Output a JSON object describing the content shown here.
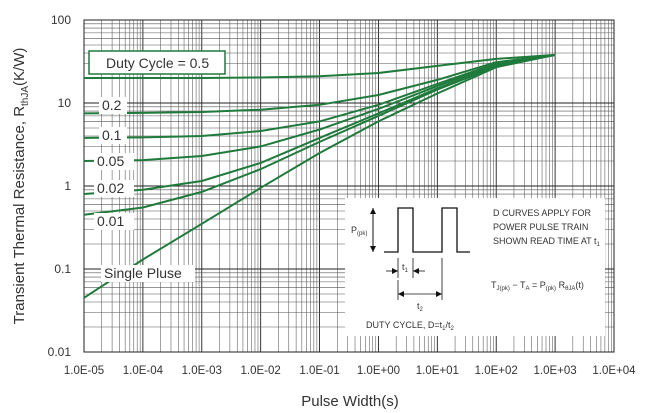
{
  "chart_data": {
    "type": "line",
    "xscale": "log",
    "yscale": "log",
    "xlim": [
      1e-05,
      10000
    ],
    "ylim": [
      0.01,
      100
    ],
    "xlabel": "Pulse Width(s)",
    "ylabel_main": "Transient Thermal Resistance, R",
    "ylabel_sub": "thJA",
    "ylabel_unit": "(K/W)",
    "x_ticks": [
      {
        "value": 1e-05,
        "label": "1.0E-05"
      },
      {
        "value": 0.0001,
        "label": "1.0E-04"
      },
      {
        "value": 0.001,
        "label": "1.0E-03"
      },
      {
        "value": 0.01,
        "label": "1.0E-02"
      },
      {
        "value": 0.1,
        "label": "1.0E-01"
      },
      {
        "value": 1,
        "label": "1.0E+00"
      },
      {
        "value": 10,
        "label": "1.0E+01"
      },
      {
        "value": 100,
        "label": "1.0E+02"
      },
      {
        "value": 1000,
        "label": "1.0E+03"
      },
      {
        "value": 10000,
        "label": "1.0E+04"
      }
    ],
    "y_ticks": [
      {
        "value": 0.01,
        "label": "0.01"
      },
      {
        "value": 0.1,
        "label": "0.1"
      },
      {
        "value": 1,
        "label": "1"
      },
      {
        "value": 10,
        "label": "10"
      },
      {
        "value": 100,
        "label": "100"
      }
    ],
    "grid": true,
    "line_color": "#1f7a3c",
    "series": [
      {
        "name": "Duty Cycle = 0.5",
        "x": [
          1e-05,
          0.0001,
          0.001,
          0.01,
          0.1,
          1,
          10,
          100,
          1000
        ],
        "y": [
          20,
          20,
          20,
          20.3,
          21,
          23,
          28,
          34,
          38
        ]
      },
      {
        "name": "0.2",
        "x": [
          1e-05,
          0.0001,
          0.001,
          0.01,
          0.1,
          1,
          10,
          100,
          1000
        ],
        "y": [
          7.5,
          7.6,
          7.8,
          8.3,
          9.5,
          12.5,
          19,
          31,
          38
        ]
      },
      {
        "name": "0.1",
        "x": [
          1e-05,
          0.0001,
          0.001,
          0.01,
          0.1,
          1,
          10,
          100,
          1000
        ],
        "y": [
          3.8,
          3.85,
          4,
          4.6,
          6,
          9.5,
          17,
          30,
          38
        ]
      },
      {
        "name": "0.05",
        "x": [
          1e-05,
          0.0001,
          0.001,
          0.01,
          0.1,
          1,
          10,
          100,
          1000
        ],
        "y": [
          2,
          2.05,
          2.3,
          3,
          4.8,
          8.5,
          16,
          29,
          38
        ]
      },
      {
        "name": "0.02",
        "x": [
          1e-05,
          0.0001,
          0.001,
          0.01,
          0.1,
          1,
          10,
          100,
          1000
        ],
        "y": [
          0.8,
          0.9,
          1.15,
          1.9,
          3.8,
          7.5,
          15,
          28,
          38
        ]
      },
      {
        "name": "0.01",
        "x": [
          1e-05,
          0.0001,
          0.001,
          0.01,
          0.1,
          1,
          10,
          100,
          1000
        ],
        "y": [
          0.45,
          0.55,
          0.85,
          1.6,
          3.4,
          7,
          14.5,
          27.5,
          38
        ]
      },
      {
        "name": "Single Pluse",
        "x": [
          1e-05,
          0.0001,
          0.001,
          0.01,
          0.1,
          1,
          10,
          100,
          1000
        ],
        "y": [
          0.045,
          0.13,
          0.35,
          0.95,
          2.5,
          6,
          13,
          27,
          38
        ]
      }
    ],
    "inset": {
      "p_label": "P",
      "p_sub": "(pk)",
      "t1": "t",
      "t1_sub": "1",
      "t2": "t",
      "t2_sub": "2",
      "duty_text": "DUTY CYCLE, D=t",
      "duty_sub1": "1",
      "duty_sep": "/t",
      "duty_sub2": "2",
      "note_line1": "D CURVES APPLY FOR",
      "note_line2": "POWER PULSE TRAIN",
      "note_line3": "SHOWN READ TIME AT t",
      "note_line3_sub": "1",
      "formula_tj": "T",
      "formula_tj_sub": "J(pk)",
      "formula_mid": " − T",
      "formula_ta_sub": "A",
      "formula_eq": " = P",
      "formula_p_sub": "(pk)",
      "formula_r": " R",
      "formula_r_sub": "θJA",
      "formula_end": "(t)"
    }
  }
}
